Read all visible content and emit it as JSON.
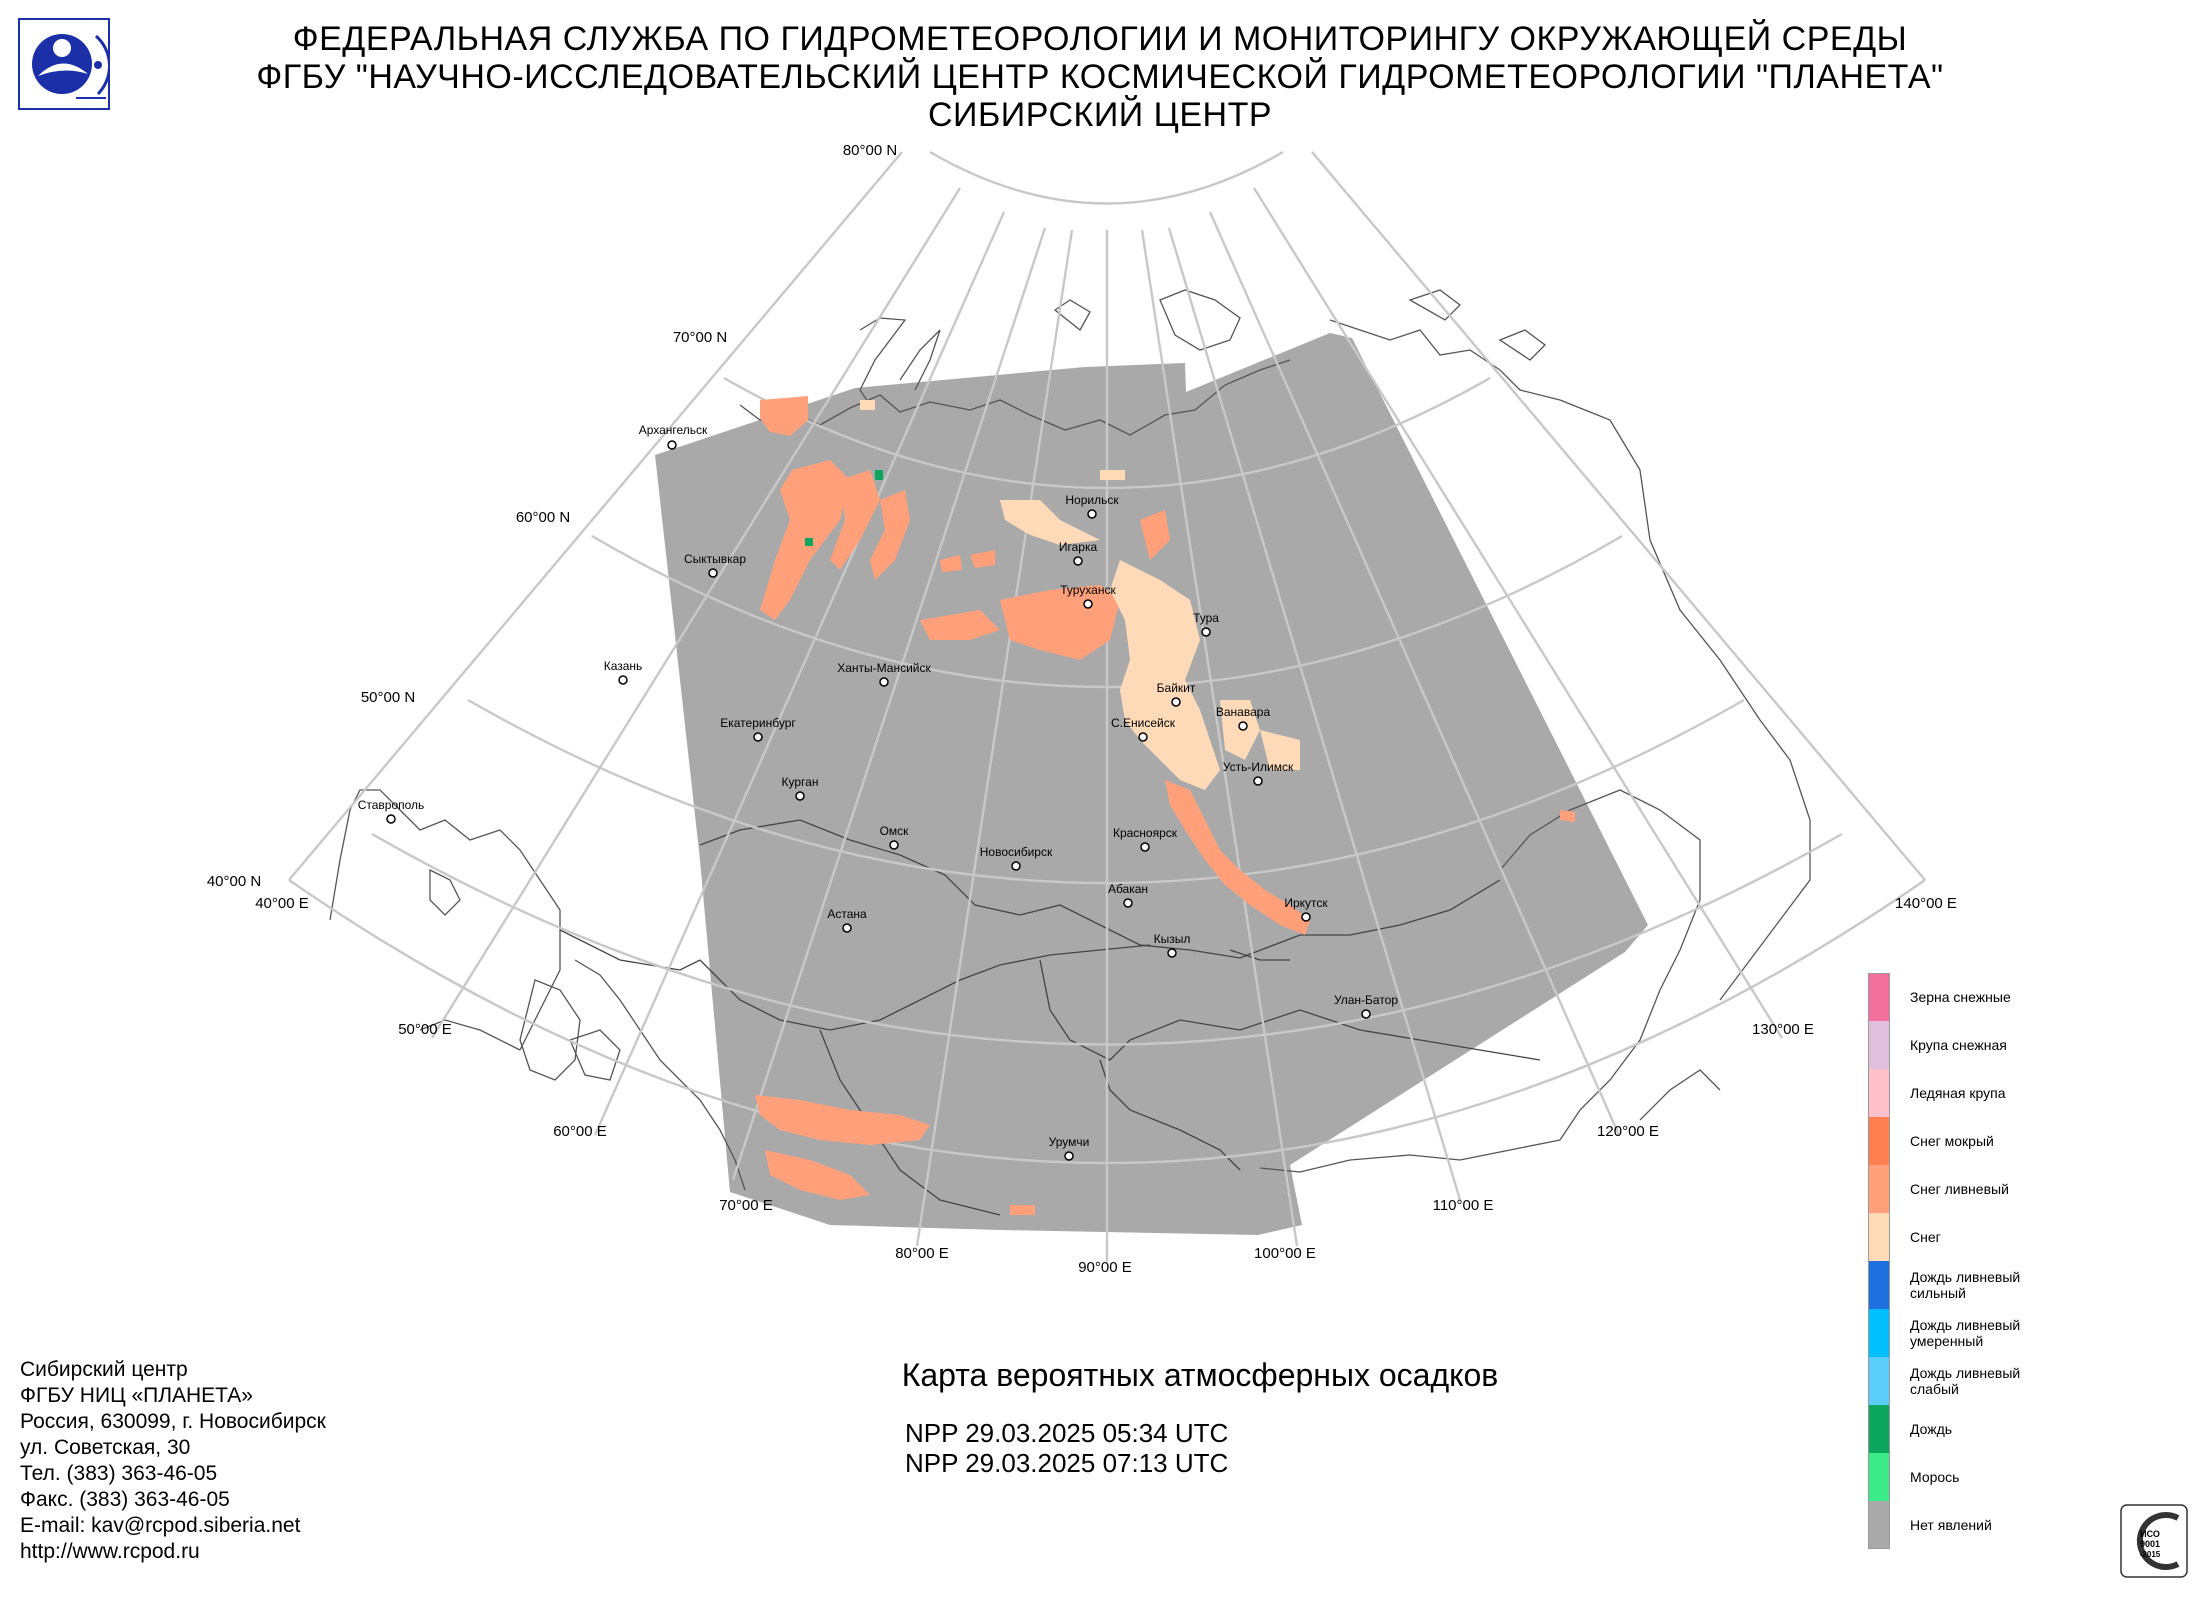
{
  "header": {
    "line1": "ФЕДЕРАЛЬНАЯ СЛУЖБА ПО ГИДРОМЕТЕОРОЛОГИИ И МОНИТОРИНГУ ОКРУЖАЮЩЕЙ СРЕДЫ",
    "line2": "ФГБУ \"НАУЧНО-ИССЛЕДОВАТЕЛЬСКИЙ ЦЕНТР КОСМИЧЕСКОЙ ГИДРОМЕТЕОРОЛОГИИ \"ПЛАНЕТА\"",
    "line3": "СИБИРСКИЙ ЦЕНТР"
  },
  "logo": {
    "icon": "planeta-logo",
    "color": "#1a2fa8"
  },
  "map": {
    "projection": "conic",
    "swath_color": "#a9a9a9",
    "latitude_labels": [
      "80°00 N",
      "70°00 N",
      "60°00 N",
      "50°00 N",
      "40°00 N"
    ],
    "longitude_labels": [
      "40°00 E",
      "50°00 E",
      "60°00 E",
      "70°00 E",
      "80°00 E",
      "90°00 E",
      "100°00 E",
      "110°00 E",
      "120°00 E",
      "130°00 E",
      "140°00 E"
    ],
    "cities": [
      "Архангельск",
      "Норильск",
      "Игарка",
      "Сыктывкар",
      "Туруханск",
      "Тура",
      "Казань",
      "Ханты-Мансийск",
      "Байкит",
      "Ванавара",
      "Екатеринбург",
      "С.Енисейск",
      "Усть-Илимск",
      "Курган",
      "Ставрополь",
      "Омск",
      "Красноярск",
      "Новосибирск",
      "Абакан",
      "Иркутск",
      "Астана",
      "Кызыл",
      "Улан-Батор",
      "Урумчи"
    ]
  },
  "legend": {
    "items": [
      {
        "label": "Зерна снежные",
        "color": "#f2709b"
      },
      {
        "label": "Крупа снежная",
        "color": "#dfbfdc"
      },
      {
        "label": "Ледяная крупа",
        "color": "#ffc0cb"
      },
      {
        "label": "Снег мокрый",
        "color": "#ff7f50"
      },
      {
        "label": "Снег ливневый",
        "color": "#ffa07a"
      },
      {
        "label": "Снег",
        "color": "#ffdab9"
      },
      {
        "label": "Дождь ливневый\nсильный",
        "color": "#1e6fe0"
      },
      {
        "label": "Дождь ливневый\nумеренный",
        "color": "#00bfff"
      },
      {
        "label": "Дождь ливневый\nслабый",
        "color": "#5acdfa"
      },
      {
        "label": "Дождь",
        "color": "#0ca65f"
      },
      {
        "label": "Морось",
        "color": "#3cec88"
      },
      {
        "label": "Нет явлений",
        "color": "#a9a9a9"
      }
    ]
  },
  "title": "Карта вероятных атмосферных осадков",
  "passes": [
    "NPP 29.03.2025  05:34 UTC",
    "NPP 29.03.2025  07:13 UTC"
  ],
  "contacts": [
    "Сибирский центр",
    "ФГБУ НИЦ «ПЛАНЕТА»",
    "Россия, 630099, г. Новосибирск",
    "ул. Советская, 30",
    "Тел. (383) 363-46-05",
    "Факс. (383) 363-46-05",
    "E-mail: kav@rcpod.siberia.net",
    "http://www.rcpod.ru"
  ],
  "certification": {
    "icon": "iso-9001-stamp",
    "text": [
      "ИСО",
      "9001",
      "-2015"
    ]
  }
}
